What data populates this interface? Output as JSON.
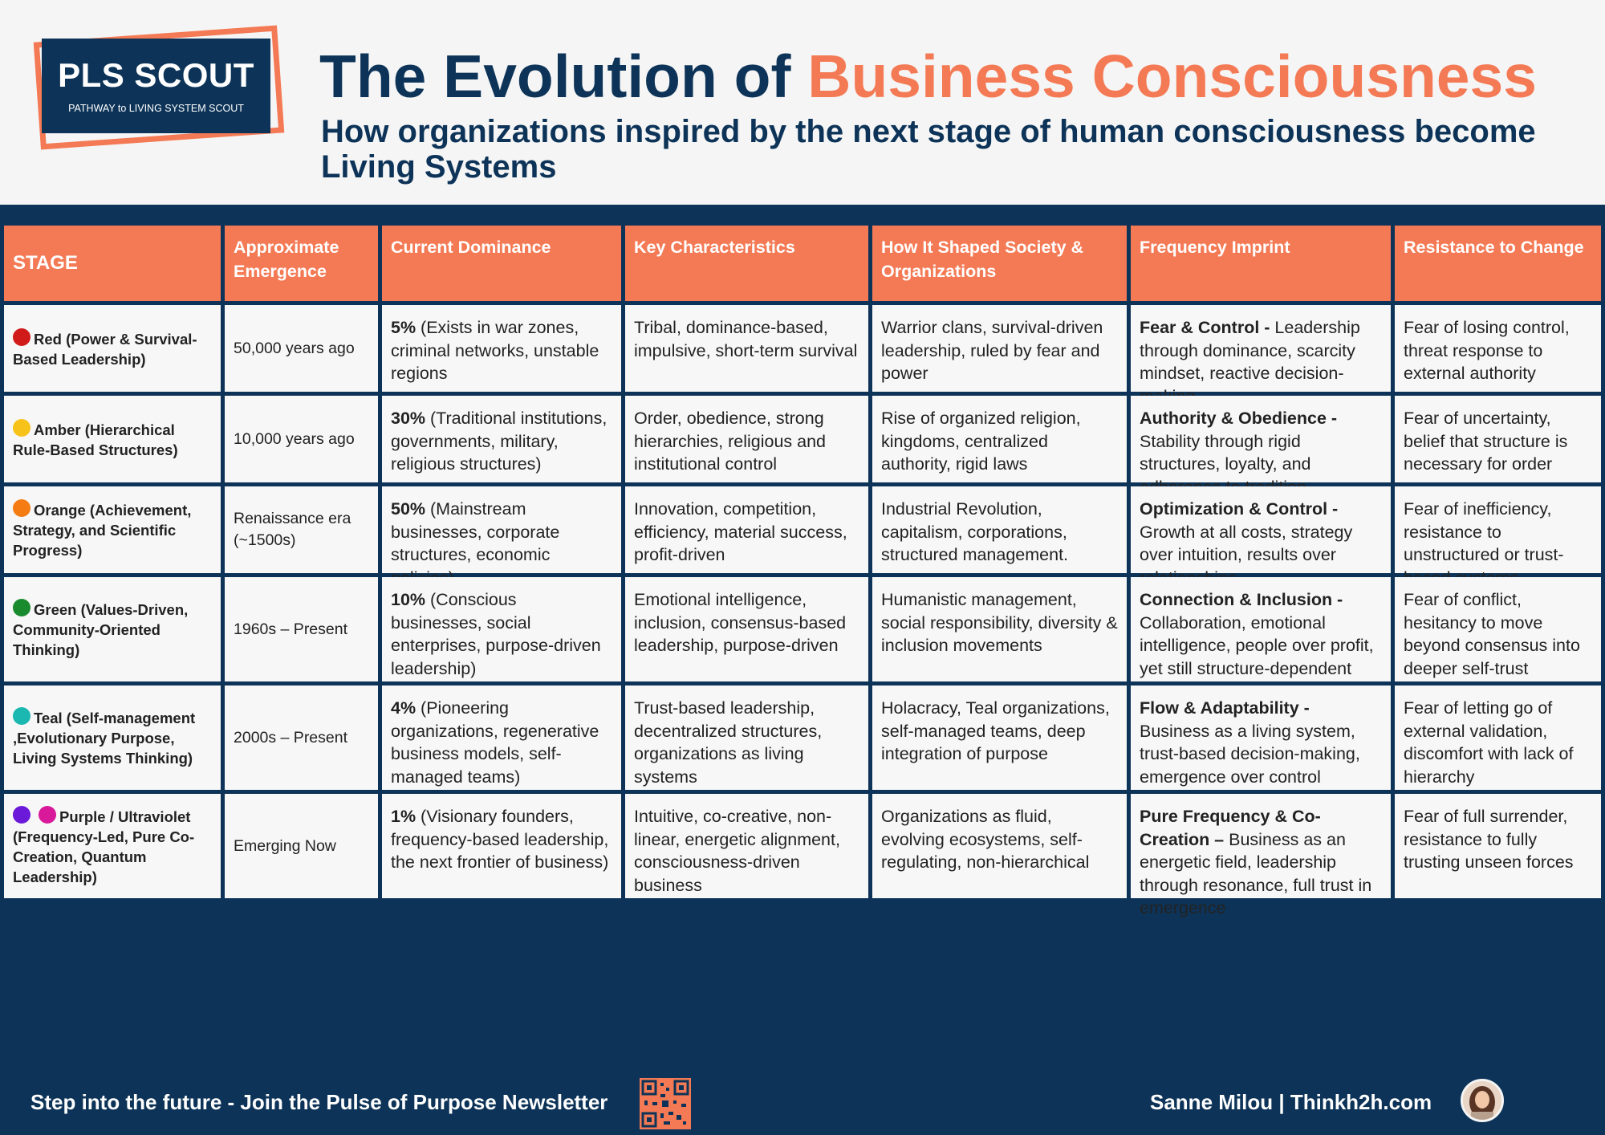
{
  "logo": {
    "title": "PLS SCOUT",
    "subtitle": "PATHWAY to LIVING SYSTEM SCOUT"
  },
  "title": {
    "part1": "The Evolution of ",
    "part2": "Business Consciousness"
  },
  "subtitle": "How organizations inspired by the next stage of human consciousness become Living Systems",
  "headers": [
    "STAGE",
    "Approximate Emergence",
    "Current Dominance",
    "Key Characteristics",
    "How It Shaped Society & Organizations",
    "Frequency Imprint",
    "Resistance to Change"
  ],
  "rows": [
    {
      "dots": [
        "#d11a1a"
      ],
      "stage": "Red (Power & Survival-Based Leadership)",
      "emergence": "50,000 years ago",
      "dominance_pct": "5%",
      "dominance_text": " (Exists in war zones, criminal networks, unstable regions",
      "characteristics": "Tribal, dominance-based, impulsive, short-term survival",
      "society": "Warrior clans, survival-driven leadership, ruled by fear and power",
      "freq_title": "Fear & Control - ",
      "freq_text": "Leadership through dominance, scarcity mindset, reactive decision-making",
      "resistance": "Fear of losing control, threat response to external authority"
    },
    {
      "dots": [
        "#f7c21a"
      ],
      "stage": "Amber (Hierarchical Rule-Based Structures)",
      "emergence": "10,000 years ago",
      "dominance_pct": "30%",
      "dominance_text": " (Traditional institutions, governments, military, religious structures)",
      "characteristics": "Order, obedience, strong hierarchies, religious and institutional control",
      "society": "Rise of organized religion, kingdoms, centralized authority, rigid laws",
      "freq_title": "Authority & Obedience - ",
      "freq_text": "Stability through rigid structures, loyalty, and adherence to tradition",
      "resistance": "Fear of uncertainty, belief that structure is necessary for order"
    },
    {
      "dots": [
        "#f57c12"
      ],
      "stage": "Orange (Achievement, Strategy, and Scientific Progress)",
      "emergence": "Renaissance era (~1500s)",
      "dominance_pct": "50%",
      "dominance_text": " (Mainstream businesses, corporate structures, economic policies)",
      "characteristics": "Innovation, competition, efficiency, material success, profit-driven",
      "society": "Industrial Revolution, capitalism, corporations, structured management.",
      "freq_title": "Optimization & Control - ",
      "freq_text": "Growth at all costs, strategy over intuition, results over relationships",
      "resistance": "Fear of inefficiency, resistance to unstructured or trust-based systems"
    },
    {
      "dots": [
        "#1a8a2e"
      ],
      "stage": "Green (Values-Driven, Community-Oriented Thinking)",
      "emergence": "1960s – Present",
      "dominance_pct": "10%",
      "dominance_text": " (Conscious businesses, social enterprises, purpose-driven leadership)",
      "characteristics": "Emotional intelligence, inclusion, consensus-based leadership, purpose-driven",
      "society": "Humanistic management, social responsibility, diversity & inclusion movements",
      "freq_title": "Connection & Inclusion - ",
      "freq_text": "Collaboration, emotional intelligence, people over profit, yet still structure-dependent",
      "resistance": "Fear of conflict, hesitancy to move beyond consensus into deeper self-trust"
    },
    {
      "dots": [
        "#1ab8b0"
      ],
      "stage": "Teal (Self-management ,Evolutionary Purpose, Living Systems Thinking)",
      "emergence": "2000s – Present",
      "dominance_pct": "4%",
      "dominance_text": " (Pioneering organizations, regenerative business models, self-managed teams)",
      "characteristics": "Trust-based leadership, decentralized structures, organizations as living systems",
      "society": "Holacracy, Teal organizations, self-managed teams, deep integration of purpose",
      "freq_title": "Flow & Adaptability - ",
      "freq_text": "Business as a living system, trust-based decision-making, emergence over control",
      "resistance": "Fear of letting go of external validation, discomfort with lack of hierarchy"
    },
    {
      "dots": [
        "#6a1ad8",
        "#d81a9a"
      ],
      "stage": "Purple / Ultraviolet (Frequency-Led, Pure Co-Creation, Quantum Leadership)",
      "emergence": "Emerging Now",
      "dominance_pct": "1%",
      "dominance_text": " (Visionary founders, frequency-based leadership, the next frontier of business)",
      "characteristics": "Intuitive, co-creative, non-linear, energetic alignment, consciousness-driven business",
      "society": "Organizations as fluid, evolving ecosystems, self-regulating, non-hierarchical",
      "freq_title": "Pure Frequency & Co-Creation – ",
      "freq_text": "Business as an energetic field, leadership through resonance, full trust in emergence",
      "resistance": "Fear of full surrender, resistance to fully trusting unseen forces"
    }
  ],
  "footer": {
    "left": "Step into the future -  Join the Pulse of Purpose Newsletter",
    "right": "Sanne Milou | Thinkh2h.com"
  },
  "colors": {
    "navy": "#0d3458",
    "accent": "#f47a55"
  },
  "icons": {
    "qr": "qr-code-icon",
    "avatar": "author-avatar"
  }
}
